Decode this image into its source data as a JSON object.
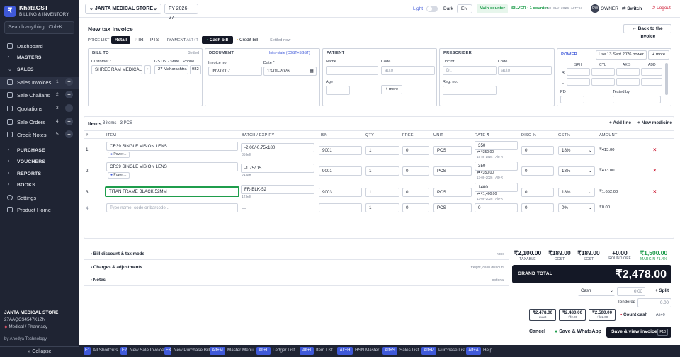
{
  "app": {
    "name": "KhataGST",
    "subtitle": "BILLING & INVENTORY",
    "logo": "₹"
  },
  "sidebar": {
    "search_placeholder": "Search anything",
    "search_shortcut": "Ctrl+K",
    "items": [
      {
        "label": "Dashboard",
        "icon": "dashboard-icon"
      },
      {
        "label": "MASTERS",
        "section": true
      },
      {
        "label": "SALES",
        "section": true
      },
      {
        "label": "Sales Invoices",
        "count": "1",
        "icon": "invoice-icon"
      },
      {
        "label": "Sale Challans",
        "count": "2",
        "icon": "challan-icon"
      },
      {
        "label": "Quotations",
        "count": "3",
        "icon": "quotation-icon"
      },
      {
        "label": "Sale Orders",
        "count": "4",
        "icon": "order-icon"
      },
      {
        "label": "Credit Notes",
        "count": "5",
        "icon": "credit-note-icon"
      },
      {
        "label": "PURCHASE",
        "section": true
      },
      {
        "label": "VOUCHERS",
        "section": true
      },
      {
        "label": "REPORTS",
        "section": true
      },
      {
        "label": "BOOKS",
        "section": true
      },
      {
        "label": "Settings",
        "icon": "gear-icon"
      },
      {
        "label": "Product Home",
        "icon": "home-icon"
      }
    ],
    "company": "JANTA MEDICAL STORE",
    "gstin": "27AAQCS4547K1ZN",
    "business_type": "Medical / Pharmacy",
    "by": "by Anedya Technology",
    "collapse": "« Collapse"
  },
  "topbar": {
    "company": "JANTA MEDICAL STORE",
    "fy": "FY 2026-27",
    "theme_light": "Light",
    "theme_dark": "Dark",
    "lang": "EN",
    "counter": "Main counter",
    "plan": "SILVER · 1 counter",
    "plan_code": "AND-SLV-2026-A6TF67",
    "user_initials": "OW",
    "user_role": "OWNER",
    "switch": "Switch",
    "logout": "Logout"
  },
  "invoice": {
    "title": "New tax invoice",
    "price_list_label": "PRICE LIST",
    "price_lists": [
      "Retail",
      "PTR",
      "PTS"
    ],
    "payment_label": "PAYMENT",
    "payment_shortcut": "ALT+T",
    "cash_bill": "Cash bill",
    "credit_bill": "Credit bill",
    "settled": "Settled now",
    "back": "Back to the invoice"
  },
  "bill_to": {
    "header": "BILL TO",
    "settled": "Settled",
    "customer_label": "Customer *",
    "customer": "SHREE RAM MEDICAL",
    "gstin_label": "GSTIN · State · Phone",
    "state": "27 Maharashtra",
    "phone": "982"
  },
  "document": {
    "header": "DOCUMENT",
    "tax_type": "Intra-state (CGST+SGST)",
    "invoice_no_label": "Invoice no.",
    "invoice_no": "INV-0007",
    "date_label": "Date *",
    "date": "13-09-2026"
  },
  "patient": {
    "header": "PATIENT",
    "name_label": "Name",
    "code_label": "Code",
    "code_placeholder": "auto",
    "age_label": "Age",
    "more": "+ more"
  },
  "prescriber": {
    "header": "PRESCRIBER",
    "doctor_label": "Doctor",
    "doctor_placeholder": "Dr.",
    "code_label": "Code",
    "code_placeholder": "auto",
    "reg_label": "Reg. no."
  },
  "power": {
    "header": "POWER",
    "use_btn": "Use 13 Sept 2026 power",
    "more": "+ more",
    "cols": [
      "SPH",
      "CYL",
      "AXIS",
      "ADD"
    ],
    "rows": [
      "R",
      "L"
    ],
    "pd_label": "PD",
    "tested_label": "Tested by"
  },
  "items": {
    "title": "Items",
    "summary": "3 items · 3 PCS",
    "add_line": "+ Add line",
    "new_medicine": "+ New medicine",
    "headers": [
      "#",
      "ITEM",
      "BATCH / EXPIRY",
      "HSN",
      "QTY",
      "FREE",
      "UNIT",
      "RATE ₹",
      "DISC %",
      "GST%",
      "AMOUNT"
    ],
    "rows": [
      {
        "n": "1",
        "item": "CR39 SINGLE VISION LENS",
        "badge": "Power...",
        "batch": "-2.00/-0.75x180",
        "left": "35 left",
        "hsn": "9001",
        "qty": "1",
        "free": "0",
        "unit": "PCS",
        "rate": "350",
        "rate_note": "₹350.00",
        "rate_date": "13-09-2026 · Alt+R",
        "disc": "0",
        "gst": "18%",
        "amount": "₹413.00"
      },
      {
        "n": "2",
        "item": "CR39 SINGLE VISION LENS",
        "badge": "Power...",
        "batch": "-1.75/DS",
        "left": "24 left",
        "hsn": "9001",
        "qty": "1",
        "free": "0",
        "unit": "PCS",
        "rate": "350",
        "rate_note": "₹350.00",
        "rate_date": "13-09-2026 · Alt+R",
        "disc": "0",
        "gst": "18%",
        "amount": "₹413.00"
      },
      {
        "n": "3",
        "item": "TITAN FRAME BLACK 52MM",
        "badge": "",
        "batch": "FR-BLK-52",
        "left": "12 left",
        "hsn": "9003",
        "qty": "1",
        "free": "0",
        "unit": "PCS",
        "rate": "1400",
        "rate_note": "₹1,400.00",
        "rate_date": "13-09-2026 · Alt+R",
        "disc": "0",
        "gst": "18%",
        "amount": "₹1,652.00"
      }
    ],
    "new_row": {
      "n": "4",
      "placeholder": "Type name, code or barcode...",
      "batch": "—",
      "qty": "1",
      "free": "0",
      "unit": "PCS",
      "rate": "0",
      "disc": "0",
      "gst": "0%",
      "amount": "₹0.00"
    }
  },
  "sections": [
    {
      "label": "Bill discount & tax mode",
      "hint": "none"
    },
    {
      "label": "Charges & adjustments",
      "hint": "freight, cash discount"
    },
    {
      "label": "Notes",
      "hint": "optional"
    }
  ],
  "totals": [
    {
      "value": "₹2,100.00",
      "label": "TAXABLE"
    },
    {
      "value": "₹189.00",
      "label": "CGST"
    },
    {
      "value": "₹189.00",
      "label": "SGST"
    },
    {
      "value": "+0.00",
      "label": "ROUND OFF"
    },
    {
      "value": "₹1,500.00",
      "label": "MARGIN 71.4%"
    }
  ],
  "grand_total": {
    "label": "GRAND TOTAL",
    "value": "₹2,478.00"
  },
  "payment": {
    "mode": "Cash",
    "amount": "0.00",
    "split": "+ Split",
    "tendered_label": "Tendered",
    "tendered": "0.00",
    "quick": [
      {
        "v": "₹2,478.00",
        "s": "exact"
      },
      {
        "v": "₹2,480.00",
        "s": "+₹2.00"
      },
      {
        "v": "₹2,500.00",
        "s": "+₹22.00"
      }
    ],
    "count_cash": "Count cash",
    "count_shortcut": "Alt+0"
  },
  "actions": {
    "cancel": "Cancel",
    "whatsapp": "Save & WhatsApp",
    "save": "Save & view invoice",
    "save_key": "F10"
  },
  "shortcuts": [
    {
      "k": "F1",
      "l": "All Shortcuts"
    },
    {
      "k": "F2",
      "l": "New Sale Invoice"
    },
    {
      "k": "F3",
      "l": "New Purchase Bill"
    },
    {
      "k": "Alt+M",
      "l": "Master Menu"
    },
    {
      "k": "Alt+L",
      "l": "Ledger List"
    },
    {
      "k": "Alt+I",
      "l": "Item List"
    },
    {
      "k": "Alt+H",
      "l": "HSN Master"
    },
    {
      "k": "Alt+S",
      "l": "Sales List"
    },
    {
      "k": "Alt+P",
      "l": "Purchase List"
    },
    {
      "k": "Alt+A",
      "l": "Help"
    }
  ],
  "colors": {
    "sidebar": "#1f2433",
    "accent": "#3f59d9",
    "success": "#1f9d4c",
    "danger": "#d0213a",
    "dark": "#141826"
  }
}
